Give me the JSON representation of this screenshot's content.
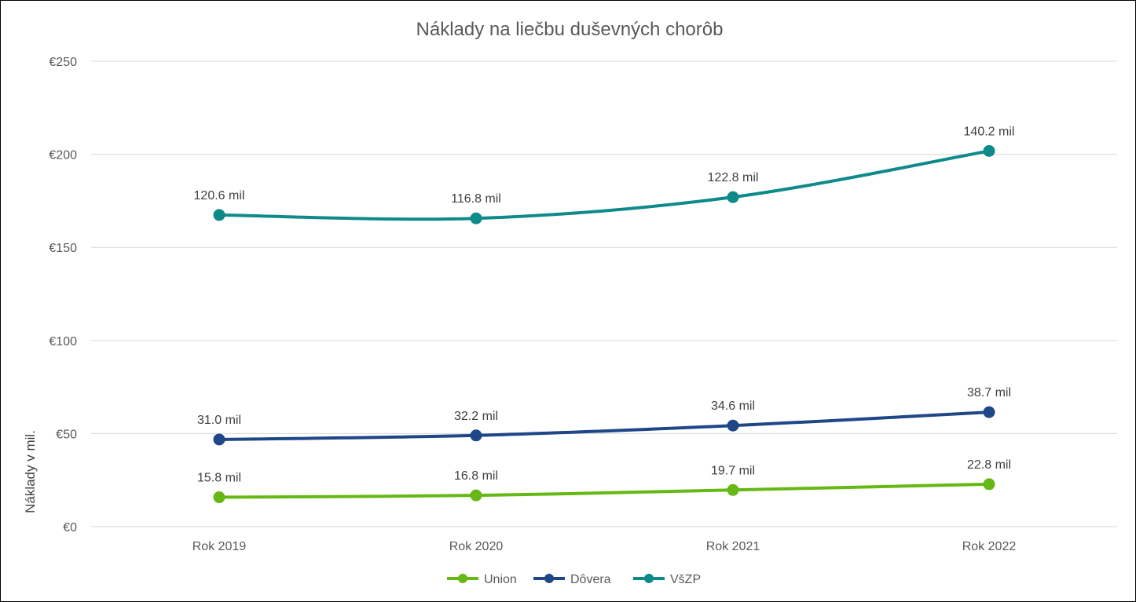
{
  "chart_data": {
    "type": "line",
    "title": "Náklady na liečbu duševných chorôb",
    "xlabel": "",
    "ylabel": "Náklady v mil.",
    "categories": [
      "Rok 2019",
      "Rok 2020",
      "Rok 2021",
      "Rok 2022"
    ],
    "ylim": [
      0,
      250
    ],
    "yticks": [
      "€0",
      "€50",
      "€100",
      "€150",
      "€200",
      "€250"
    ],
    "ytick_values": [
      0,
      50,
      100,
      150,
      200,
      250
    ],
    "grid": true,
    "legend_position": "bottom",
    "smooth": true,
    "series": [
      {
        "name": "Union",
        "color": "#66b814",
        "values": [
          15.8,
          16.8,
          19.7,
          22.8
        ],
        "labels": [
          "15.8 mil",
          "16.8 mil",
          "19.7 mil",
          "22.8 mil"
        ]
      },
      {
        "name": "Dôvera",
        "color": "#1f4788",
        "values": [
          46.8,
          49.0,
          54.3,
          61.5
        ],
        "labels": [
          "31.0 mil",
          "32.2 mil",
          "34.6 mil",
          "38.7 mil"
        ]
      },
      {
        "name": "VšZP",
        "color": "#0e8a8a",
        "values": [
          167.4,
          165.6,
          177.0,
          201.8
        ],
        "labels": [
          "120.6 mil",
          "116.8 mil",
          "122.8 mil",
          "140.2 mil"
        ]
      }
    ]
  }
}
